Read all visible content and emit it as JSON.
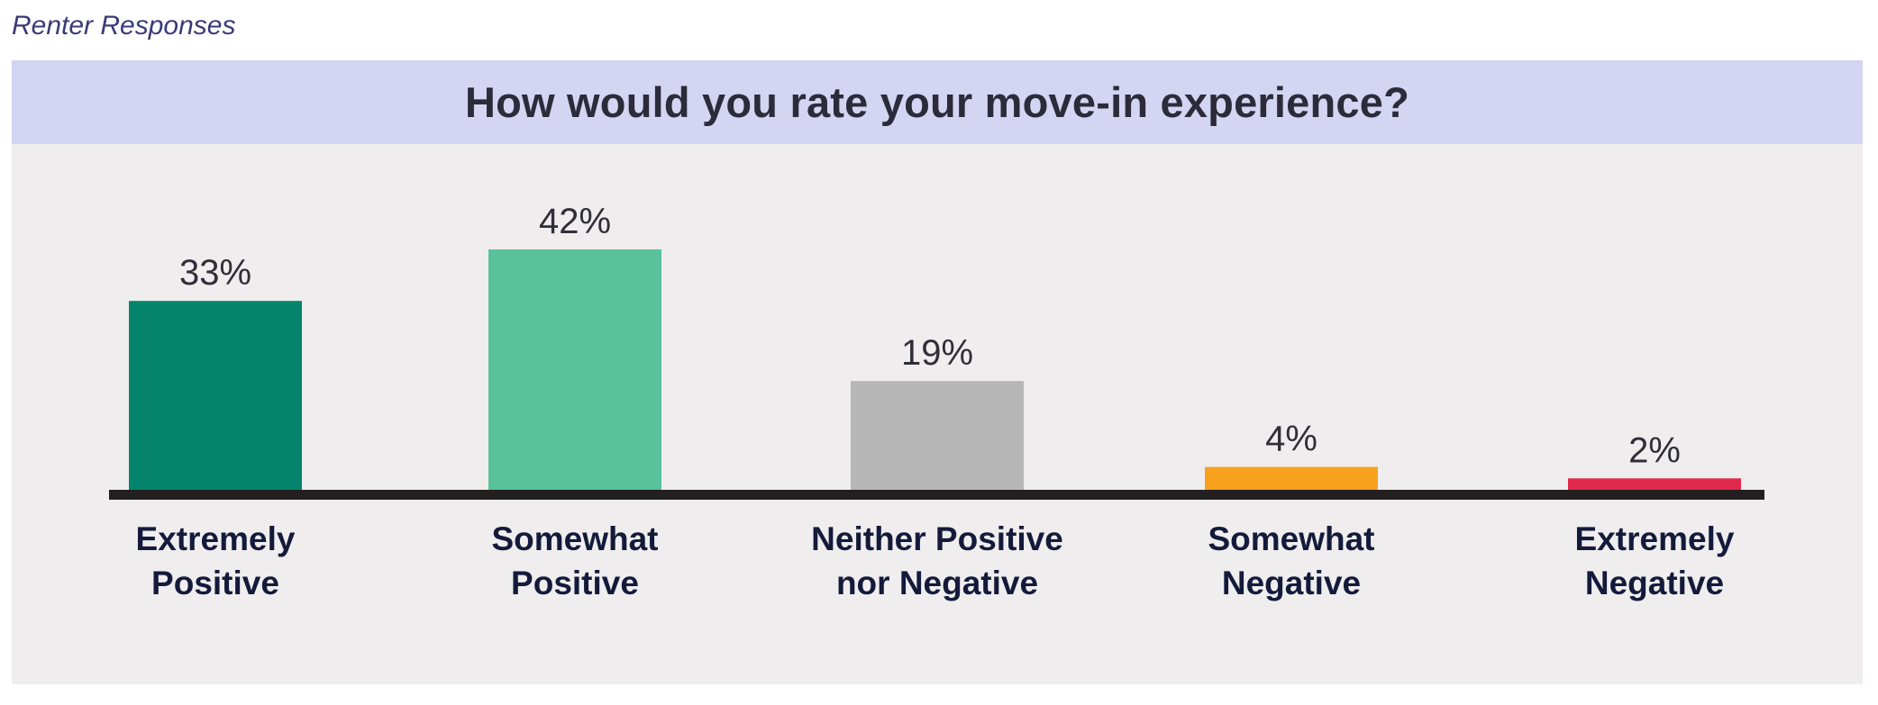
{
  "header": {
    "subtitle": "Renter Responses",
    "title": "How would you rate your move-in experience?"
  },
  "chart_data": {
    "type": "bar",
    "title": "How would you rate your move-in experience?",
    "categories": [
      [
        "Extremely",
        "Positive"
      ],
      [
        "Somewhat",
        "Positive"
      ],
      [
        "Neither Positive",
        "nor Negative"
      ],
      [
        "Somewhat",
        "Negative"
      ],
      [
        "Extremely",
        "Negative"
      ]
    ],
    "values": [
      33,
      42,
      19,
      4,
      2
    ],
    "value_labels": [
      "33%",
      "42%",
      "19%",
      "4%",
      "2%"
    ],
    "colors": [
      "#07846d",
      "#59c19b",
      "#b7b7b7",
      "#f7a11f",
      "#e0294b"
    ],
    "ylim": [
      0,
      42
    ],
    "grid": false,
    "legend": "none",
    "xlabel": "",
    "ylabel": ""
  }
}
